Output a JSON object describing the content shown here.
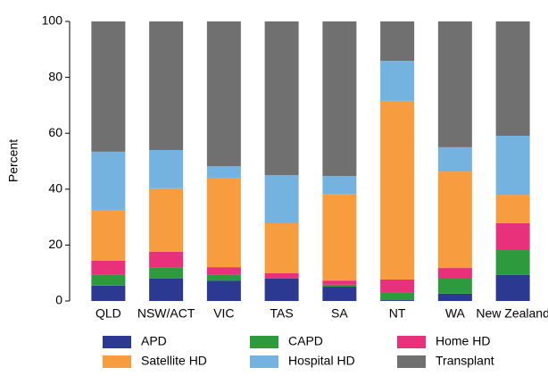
{
  "chart_data": {
    "type": "stacked_bar",
    "y_label": "Percent",
    "categories": [
      "QLD",
      "NSW/ACT",
      "VIC",
      "TAS",
      "SA",
      "NT",
      "WA",
      "New Zealand"
    ],
    "series": [
      {
        "name": "APD",
        "color": "#2b3990",
        "values": [
          5.5,
          8,
          7.3,
          8,
          5.1,
          0.3,
          2.6,
          9.3
        ]
      },
      {
        "name": "CAPD",
        "color": "#2e9a3e",
        "values": [
          3.8,
          4.1,
          2,
          0.3,
          0.7,
          2.6,
          5.7,
          8.9
        ]
      },
      {
        "name": "Home HD",
        "color": "#e8317a",
        "values": [
          5.1,
          5.5,
          2.8,
          1.6,
          1.5,
          4.8,
          3.5,
          9.6
        ]
      },
      {
        "name": "Satellite HD",
        "color": "#f89c40",
        "values": [
          18.2,
          22.7,
          32,
          17.9,
          31,
          63.9,
          34.5,
          10.2
        ]
      },
      {
        "name": "Hospital HD",
        "color": "#74b3e0",
        "values": [
          20.8,
          13.7,
          4.1,
          17.2,
          6.4,
          14.3,
          8.7,
          21.1
        ]
      },
      {
        "name": "Transplant",
        "color": "#707070",
        "values": [
          46.6,
          46,
          51.8,
          55,
          55.3,
          14.1,
          45,
          40.9
        ]
      }
    ],
    "ylim": [
      0,
      100
    ],
    "yticks": [
      0,
      20,
      40,
      60,
      80,
      100
    ],
    "grid": false,
    "legend": "bottom"
  }
}
